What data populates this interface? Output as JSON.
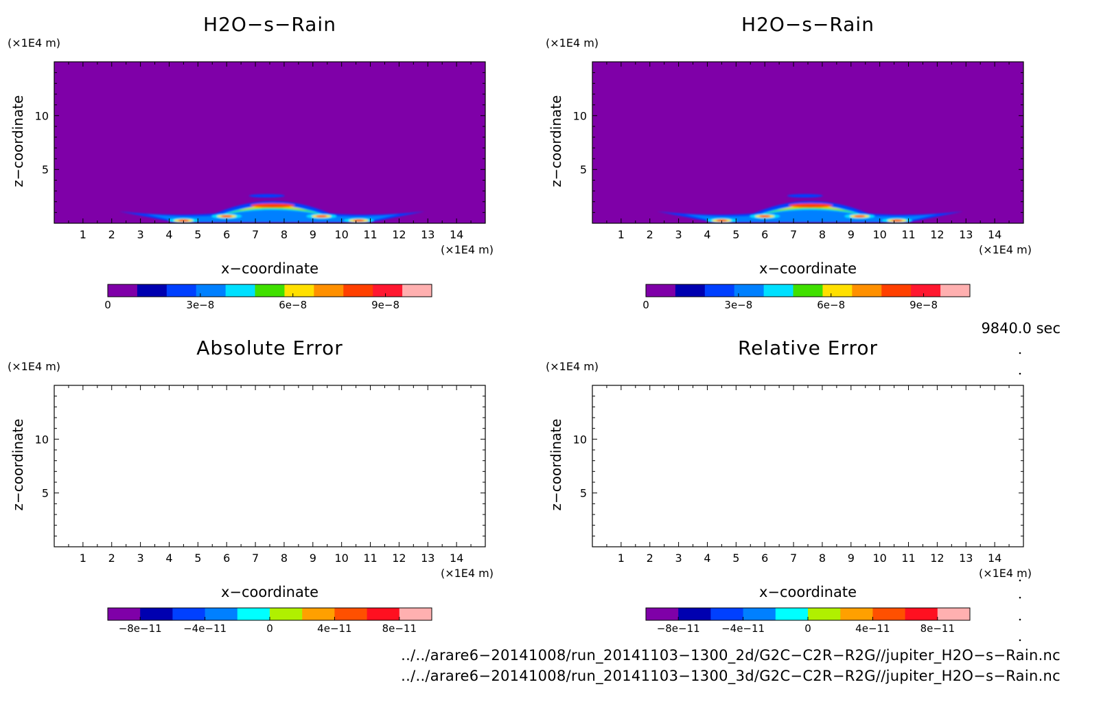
{
  "colors": {
    "background_field": "#7f00a8",
    "frame": "#000000"
  },
  "chart_data": [
    {
      "type": "heatmap",
      "title": "H2O−s−Rain",
      "xlabel": "x−coordinate",
      "ylabel": "z−coordinate",
      "x_unit": "(×1E4 m)",
      "y_unit": "(×1E4 m)",
      "xlim": [
        0,
        15
      ],
      "ylim": [
        0,
        15
      ],
      "x_ticks": [
        "1",
        "2",
        "3",
        "4",
        "5",
        "6",
        "7",
        "8",
        "9",
        "10",
        "11",
        "12",
        "13",
        "14"
      ],
      "y_ticks": [
        "5",
        "10"
      ],
      "field": "filled",
      "colorbar": {
        "colors": [
          "#7f00a8",
          "#0000b0",
          "#0040ff",
          "#0080ff",
          "#00e0ff",
          "#40e000",
          "#ffe000",
          "#ff9000",
          "#ff4000",
          "#ff1830",
          "#ffb0b0"
        ],
        "tick_labels": [
          "0",
          "3e−8",
          "6e−8",
          "9e−8"
        ],
        "tick_values": [
          0,
          3e-08,
          6e-08,
          9e-08
        ],
        "range": [
          0,
          1.05e-07
        ]
      }
    },
    {
      "type": "heatmap",
      "title": "H2O−s−Rain",
      "xlabel": "x−coordinate",
      "ylabel": "z−coordinate",
      "x_unit": "(×1E4 m)",
      "y_unit": "(×1E4 m)",
      "xlim": [
        0,
        15
      ],
      "ylim": [
        0,
        15
      ],
      "x_ticks": [
        "1",
        "2",
        "3",
        "4",
        "5",
        "6",
        "7",
        "8",
        "9",
        "10",
        "11",
        "12",
        "13",
        "14"
      ],
      "y_ticks": [
        "5",
        "10"
      ],
      "field": "filled",
      "colorbar": {
        "colors": [
          "#7f00a8",
          "#0000b0",
          "#0040ff",
          "#0080ff",
          "#00e0ff",
          "#40e000",
          "#ffe000",
          "#ff9000",
          "#ff4000",
          "#ff1830",
          "#ffb0b0"
        ],
        "tick_labels": [
          "0",
          "3e−8",
          "6e−8",
          "9e−8"
        ],
        "tick_values": [
          0,
          3e-08,
          6e-08,
          9e-08
        ],
        "range": [
          0,
          1.05e-07
        ]
      }
    },
    {
      "type": "heatmap",
      "title": "Absolute Error",
      "xlabel": "x−coordinate",
      "ylabel": "z−coordinate",
      "x_unit": "(×1E4 m)",
      "y_unit": "(×1E4 m)",
      "xlim": [
        0,
        15
      ],
      "ylim": [
        0,
        15
      ],
      "x_ticks": [
        "1",
        "2",
        "3",
        "4",
        "5",
        "6",
        "7",
        "8",
        "9",
        "10",
        "11",
        "12",
        "13",
        "14"
      ],
      "y_ticks": [
        "5",
        "10"
      ],
      "field": "empty",
      "colorbar": {
        "colors": [
          "#7f00a8",
          "#0000b0",
          "#0040ff",
          "#0080ff",
          "#00ffff",
          "#b0f000",
          "#ffa000",
          "#ff5000",
          "#ff1020",
          "#ffb0b0"
        ],
        "tick_labels": [
          "−8e−11",
          "−4e−11",
          "0",
          "4e−11",
          "8e−11"
        ],
        "tick_values": [
          -8e-11,
          -4e-11,
          0,
          4e-11,
          8e-11
        ],
        "range": [
          -1e-10,
          1e-10
        ]
      }
    },
    {
      "type": "heatmap",
      "title": "Relative Error",
      "xlabel": "x−coordinate",
      "ylabel": "z−coordinate",
      "x_unit": "(×1E4 m)",
      "y_unit": "(×1E4 m)",
      "xlim": [
        0,
        15
      ],
      "ylim": [
        0,
        15
      ],
      "x_ticks": [
        "1",
        "2",
        "3",
        "4",
        "5",
        "6",
        "7",
        "8",
        "9",
        "10",
        "11",
        "12",
        "13",
        "14"
      ],
      "y_ticks": [
        "5",
        "10"
      ],
      "field": "empty",
      "colorbar": {
        "colors": [
          "#7f00a8",
          "#0000b0",
          "#0040ff",
          "#0080ff",
          "#00ffff",
          "#b0f000",
          "#ffa000",
          "#ff5000",
          "#ff1020",
          "#ffb0b0"
        ],
        "tick_labels": [
          "−8e−11",
          "−4e−11",
          "0",
          "4e−11",
          "8e−11"
        ],
        "tick_values": [
          -8e-11,
          -4e-11,
          0,
          4e-11,
          8e-11
        ],
        "range": [
          -1e-10,
          1e-10
        ]
      }
    }
  ],
  "timestamp": "9840.0 sec",
  "files": [
    "../../arare6−20141008/run_20141103−1300_2d/G2C−C2R−R2G//jupiter_H2O−s−Rain.nc",
    "../../arare6−20141008/run_20141103−1300_3d/G2C−C2R−R2G//jupiter_H2O−s−Rain.nc"
  ]
}
